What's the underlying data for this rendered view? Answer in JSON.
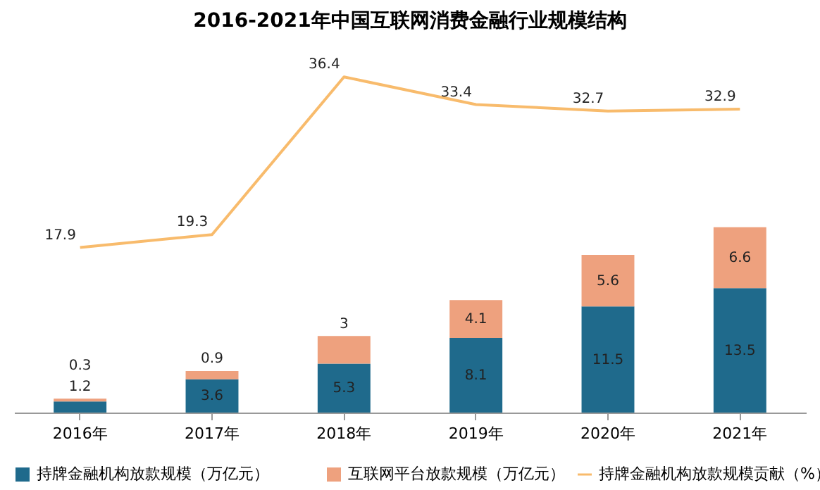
{
  "chart_data": {
    "type": "bar",
    "title": "2016-2021年中国互联网消费金融行业规模结构",
    "categories": [
      "2016年",
      "2017年",
      "2018年",
      "2019年",
      "2020年",
      "2021年"
    ],
    "stacked": true,
    "data_labels": true,
    "legend": "bottom",
    "series": [
      {
        "name": "持牌金融机构放款规模（万亿元）",
        "color": "#1f6a8c",
        "values": [
          1.2,
          3.6,
          5.3,
          8.1,
          11.5,
          13.5
        ]
      },
      {
        "name": "互联网平台放款规模（万亿元）",
        "color": "#eea17e",
        "values": [
          0.3,
          0.9,
          3,
          4.1,
          5.6,
          6.6
        ]
      },
      {
        "name": "持牌金融机构放款规模贡献（%）",
        "type": "line",
        "color": "#f8bb6c",
        "values": [
          17.9,
          19.3,
          36.4,
          33.4,
          32.7,
          32.9
        ]
      }
    ]
  }
}
